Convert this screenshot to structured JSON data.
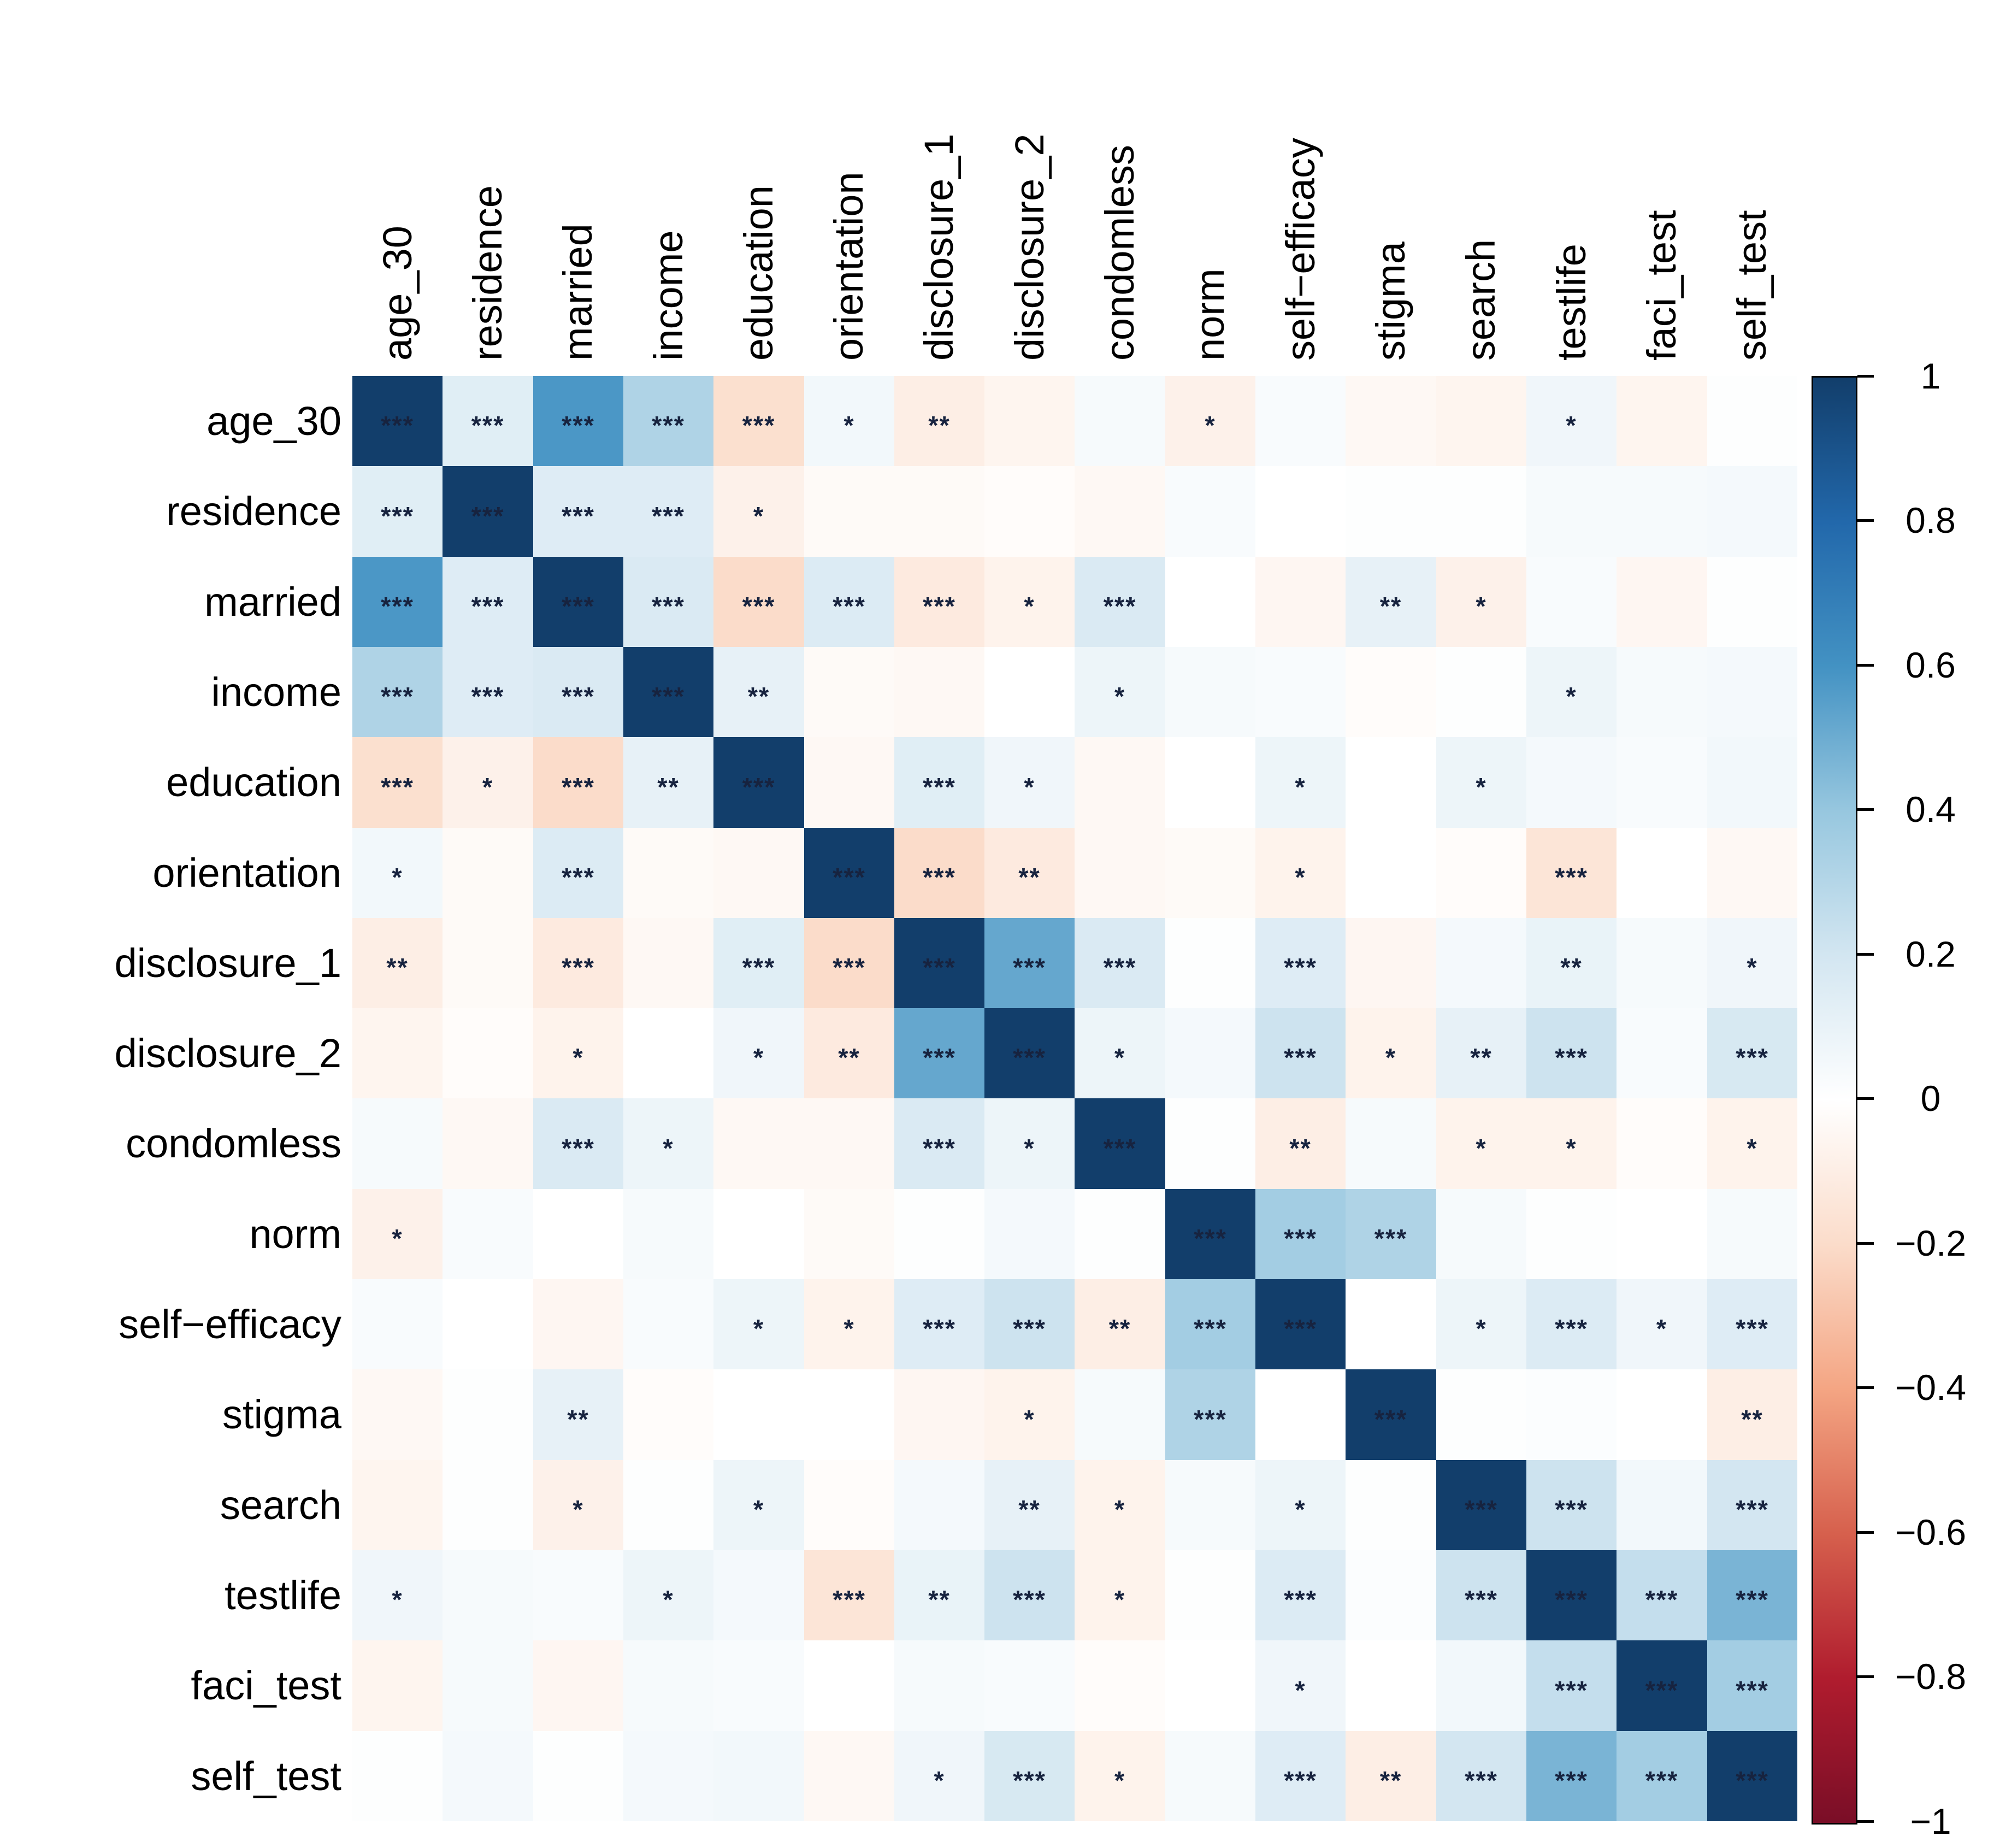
{
  "chart_data": {
    "type": "heatmap",
    "title": "",
    "variables": [
      "age_30",
      "residence",
      "married",
      "income",
      "education",
      "orientation",
      "disclosure_1",
      "disclosure_2",
      "condomless",
      "norm",
      "self−efficacy",
      "stigma",
      "search",
      "testlife",
      "faci_test",
      "self_test"
    ],
    "matrix": [
      [
        1.0,
        0.14,
        0.58,
        0.32,
        -0.18,
        0.06,
        -0.1,
        -0.06,
        0.04,
        -0.08,
        0.03,
        -0.04,
        -0.06,
        0.07,
        -0.06,
        0.01
      ],
      [
        0.14,
        1.0,
        0.15,
        0.15,
        -0.08,
        -0.03,
        -0.03,
        -0.02,
        -0.04,
        0.03,
        0.0,
        0.01,
        0.01,
        0.04,
        0.04,
        0.05
      ],
      [
        0.58,
        0.15,
        1.0,
        0.17,
        -0.2,
        0.16,
        -0.12,
        -0.07,
        0.17,
        0.0,
        -0.05,
        0.11,
        -0.08,
        0.03,
        -0.05,
        0.01
      ],
      [
        0.32,
        0.15,
        0.17,
        1.0,
        0.11,
        -0.03,
        -0.04,
        0.0,
        0.08,
        0.04,
        0.03,
        -0.02,
        0.01,
        0.08,
        0.04,
        0.05
      ],
      [
        -0.18,
        -0.08,
        -0.2,
        0.11,
        1.0,
        -0.04,
        0.14,
        0.07,
        -0.04,
        0.0,
        0.08,
        0.0,
        0.08,
        0.05,
        0.03,
        0.06
      ],
      [
        0.06,
        -0.03,
        0.16,
        -0.03,
        -0.04,
        1.0,
        -0.2,
        -0.12,
        -0.04,
        -0.03,
        -0.07,
        0.0,
        -0.02,
        -0.15,
        0.0,
        -0.04
      ],
      [
        -0.1,
        -0.03,
        -0.12,
        -0.04,
        0.14,
        -0.2,
        1.0,
        0.52,
        0.17,
        0.01,
        0.15,
        -0.05,
        0.05,
        0.1,
        0.04,
        0.07
      ],
      [
        -0.06,
        -0.02,
        -0.07,
        0.0,
        0.07,
        -0.12,
        0.52,
        1.0,
        0.08,
        0.05,
        0.22,
        -0.07,
        0.11,
        0.22,
        0.03,
        0.18
      ],
      [
        0.04,
        -0.04,
        0.17,
        0.08,
        -0.04,
        -0.04,
        0.17,
        0.08,
        1.0,
        0.01,
        -0.1,
        0.04,
        -0.07,
        -0.07,
        -0.02,
        -0.07
      ],
      [
        -0.08,
        0.03,
        0.0,
        0.04,
        0.0,
        -0.03,
        0.01,
        0.05,
        0.01,
        1.0,
        0.36,
        0.32,
        0.04,
        0.01,
        0.0,
        0.04
      ],
      [
        0.03,
        0.0,
        -0.05,
        0.03,
        0.08,
        -0.07,
        0.15,
        0.22,
        -0.1,
        0.36,
        1.0,
        0.0,
        0.08,
        0.16,
        0.07,
        0.15
      ],
      [
        -0.04,
        0.01,
        0.11,
        -0.02,
        0.0,
        0.0,
        -0.05,
        -0.07,
        0.04,
        0.32,
        0.0,
        1.0,
        0.01,
        0.02,
        0.0,
        -0.1
      ],
      [
        -0.06,
        0.01,
        -0.08,
        0.01,
        0.08,
        -0.02,
        0.05,
        0.11,
        -0.07,
        0.04,
        0.08,
        0.01,
        1.0,
        0.22,
        0.06,
        0.2
      ],
      [
        0.07,
        0.04,
        0.03,
        0.08,
        0.05,
        -0.15,
        0.1,
        0.22,
        -0.07,
        0.01,
        0.16,
        0.02,
        0.22,
        1.0,
        0.25,
        0.47
      ],
      [
        -0.06,
        0.04,
        -0.05,
        0.04,
        0.03,
        0.0,
        0.04,
        0.03,
        -0.02,
        0.0,
        0.07,
        0.0,
        0.06,
        0.25,
        1.0,
        0.36
      ],
      [
        0.01,
        0.05,
        0.01,
        0.05,
        0.06,
        -0.04,
        0.07,
        0.18,
        -0.07,
        0.04,
        0.15,
        -0.1,
        0.2,
        0.47,
        0.36,
        1.0
      ]
    ],
    "stars": [
      [
        "***",
        "***",
        "***",
        "***",
        "***",
        "*",
        "**",
        "",
        "",
        "*",
        "",
        "",
        "",
        "*",
        "",
        ""
      ],
      [
        "***",
        "***",
        "***",
        "***",
        "*",
        "",
        "",
        "",
        "",
        "",
        "",
        "",
        "",
        "",
        "",
        ""
      ],
      [
        "***",
        "***",
        "***",
        "***",
        "***",
        "***",
        "***",
        "*",
        "***",
        "",
        "",
        "**",
        "*",
        "",
        "",
        ""
      ],
      [
        "***",
        "***",
        "***",
        "***",
        "**",
        "",
        "",
        "",
        "*",
        "",
        "",
        "",
        "",
        "*",
        "",
        ""
      ],
      [
        "***",
        "*",
        "***",
        "**",
        "***",
        "",
        "***",
        "*",
        "",
        "",
        "*",
        "",
        "*",
        "",
        "",
        ""
      ],
      [
        "*",
        "",
        "***",
        "",
        "",
        "***",
        "***",
        "**",
        "",
        "",
        "*",
        "",
        "",
        "***",
        "",
        ""
      ],
      [
        "**",
        "",
        "***",
        "",
        "***",
        "***",
        "***",
        "***",
        "***",
        "",
        "***",
        "",
        "",
        "**",
        "",
        "*"
      ],
      [
        "",
        "",
        "*",
        "",
        "*",
        "**",
        "***",
        "***",
        "*",
        "",
        "***",
        "*",
        "**",
        "***",
        "",
        "***"
      ],
      [
        "",
        "",
        "***",
        "*",
        "",
        "",
        "***",
        "*",
        "***",
        "",
        "**",
        "",
        "*",
        "*",
        "",
        "*"
      ],
      [
        "*",
        "",
        "",
        "",
        "",
        "",
        "",
        "",
        "",
        "***",
        "***",
        "***",
        "",
        "",
        "",
        ""
      ],
      [
        "",
        "",
        "",
        "",
        "*",
        "*",
        "***",
        "***",
        "**",
        "***",
        "***",
        "",
        "*",
        "***",
        "*",
        "***"
      ],
      [
        "",
        "",
        "**",
        "",
        "",
        "",
        "",
        "*",
        "",
        "***",
        "",
        "***",
        "",
        "",
        "",
        "**"
      ],
      [
        "",
        "",
        "*",
        "",
        "*",
        "",
        "",
        "**",
        "*",
        "",
        "*",
        "",
        "***",
        "***",
        "",
        "***"
      ],
      [
        "*",
        "",
        "",
        "*",
        "",
        "***",
        "**",
        "***",
        "*",
        "",
        "***",
        "",
        "***",
        "***",
        "***",
        "***"
      ],
      [
        "",
        "",
        "",
        "",
        "",
        "",
        "",
        "",
        "",
        "",
        "*",
        "",
        "",
        "***",
        "***",
        "***"
      ],
      [
        "",
        "",
        "",
        "",
        "",
        "",
        "*",
        "***",
        "*",
        "",
        "***",
        "**",
        "***",
        "***",
        "***",
        "***"
      ]
    ],
    "colorbar": {
      "orientation": "vertical",
      "range": [
        -1,
        1
      ],
      "tick_values": [
        1,
        0.8,
        0.6,
        0.4,
        0.2,
        0,
        -0.2,
        -0.4,
        -0.6,
        -0.8,
        -1
      ],
      "tick_labels": [
        "1",
        "0.8",
        "0.6",
        "0.4",
        "0.2",
        "0",
        "−0.2",
        "−0.4",
        "−0.6",
        "−0.8",
        "−1"
      ],
      "colormap_anchors": [
        {
          "value": 1.0,
          "color": "#123e6b"
        },
        {
          "value": 0.8,
          "color": "#2268ab"
        },
        {
          "value": 0.6,
          "color": "#4392c3"
        },
        {
          "value": 0.4,
          "color": "#97c7df"
        },
        {
          "value": 0.2,
          "color": "#d3e6f1"
        },
        {
          "value": 0.0,
          "color": "#ffffff"
        },
        {
          "value": -0.2,
          "color": "#fbdcca"
        },
        {
          "value": -0.4,
          "color": "#f4a583"
        },
        {
          "value": -0.6,
          "color": "#d6604d"
        },
        {
          "value": -0.8,
          "color": "#b01c2e"
        },
        {
          "value": -1.0,
          "color": "#7a0e27"
        }
      ]
    },
    "star_color": "#17233f",
    "background": "#ffffff"
  }
}
